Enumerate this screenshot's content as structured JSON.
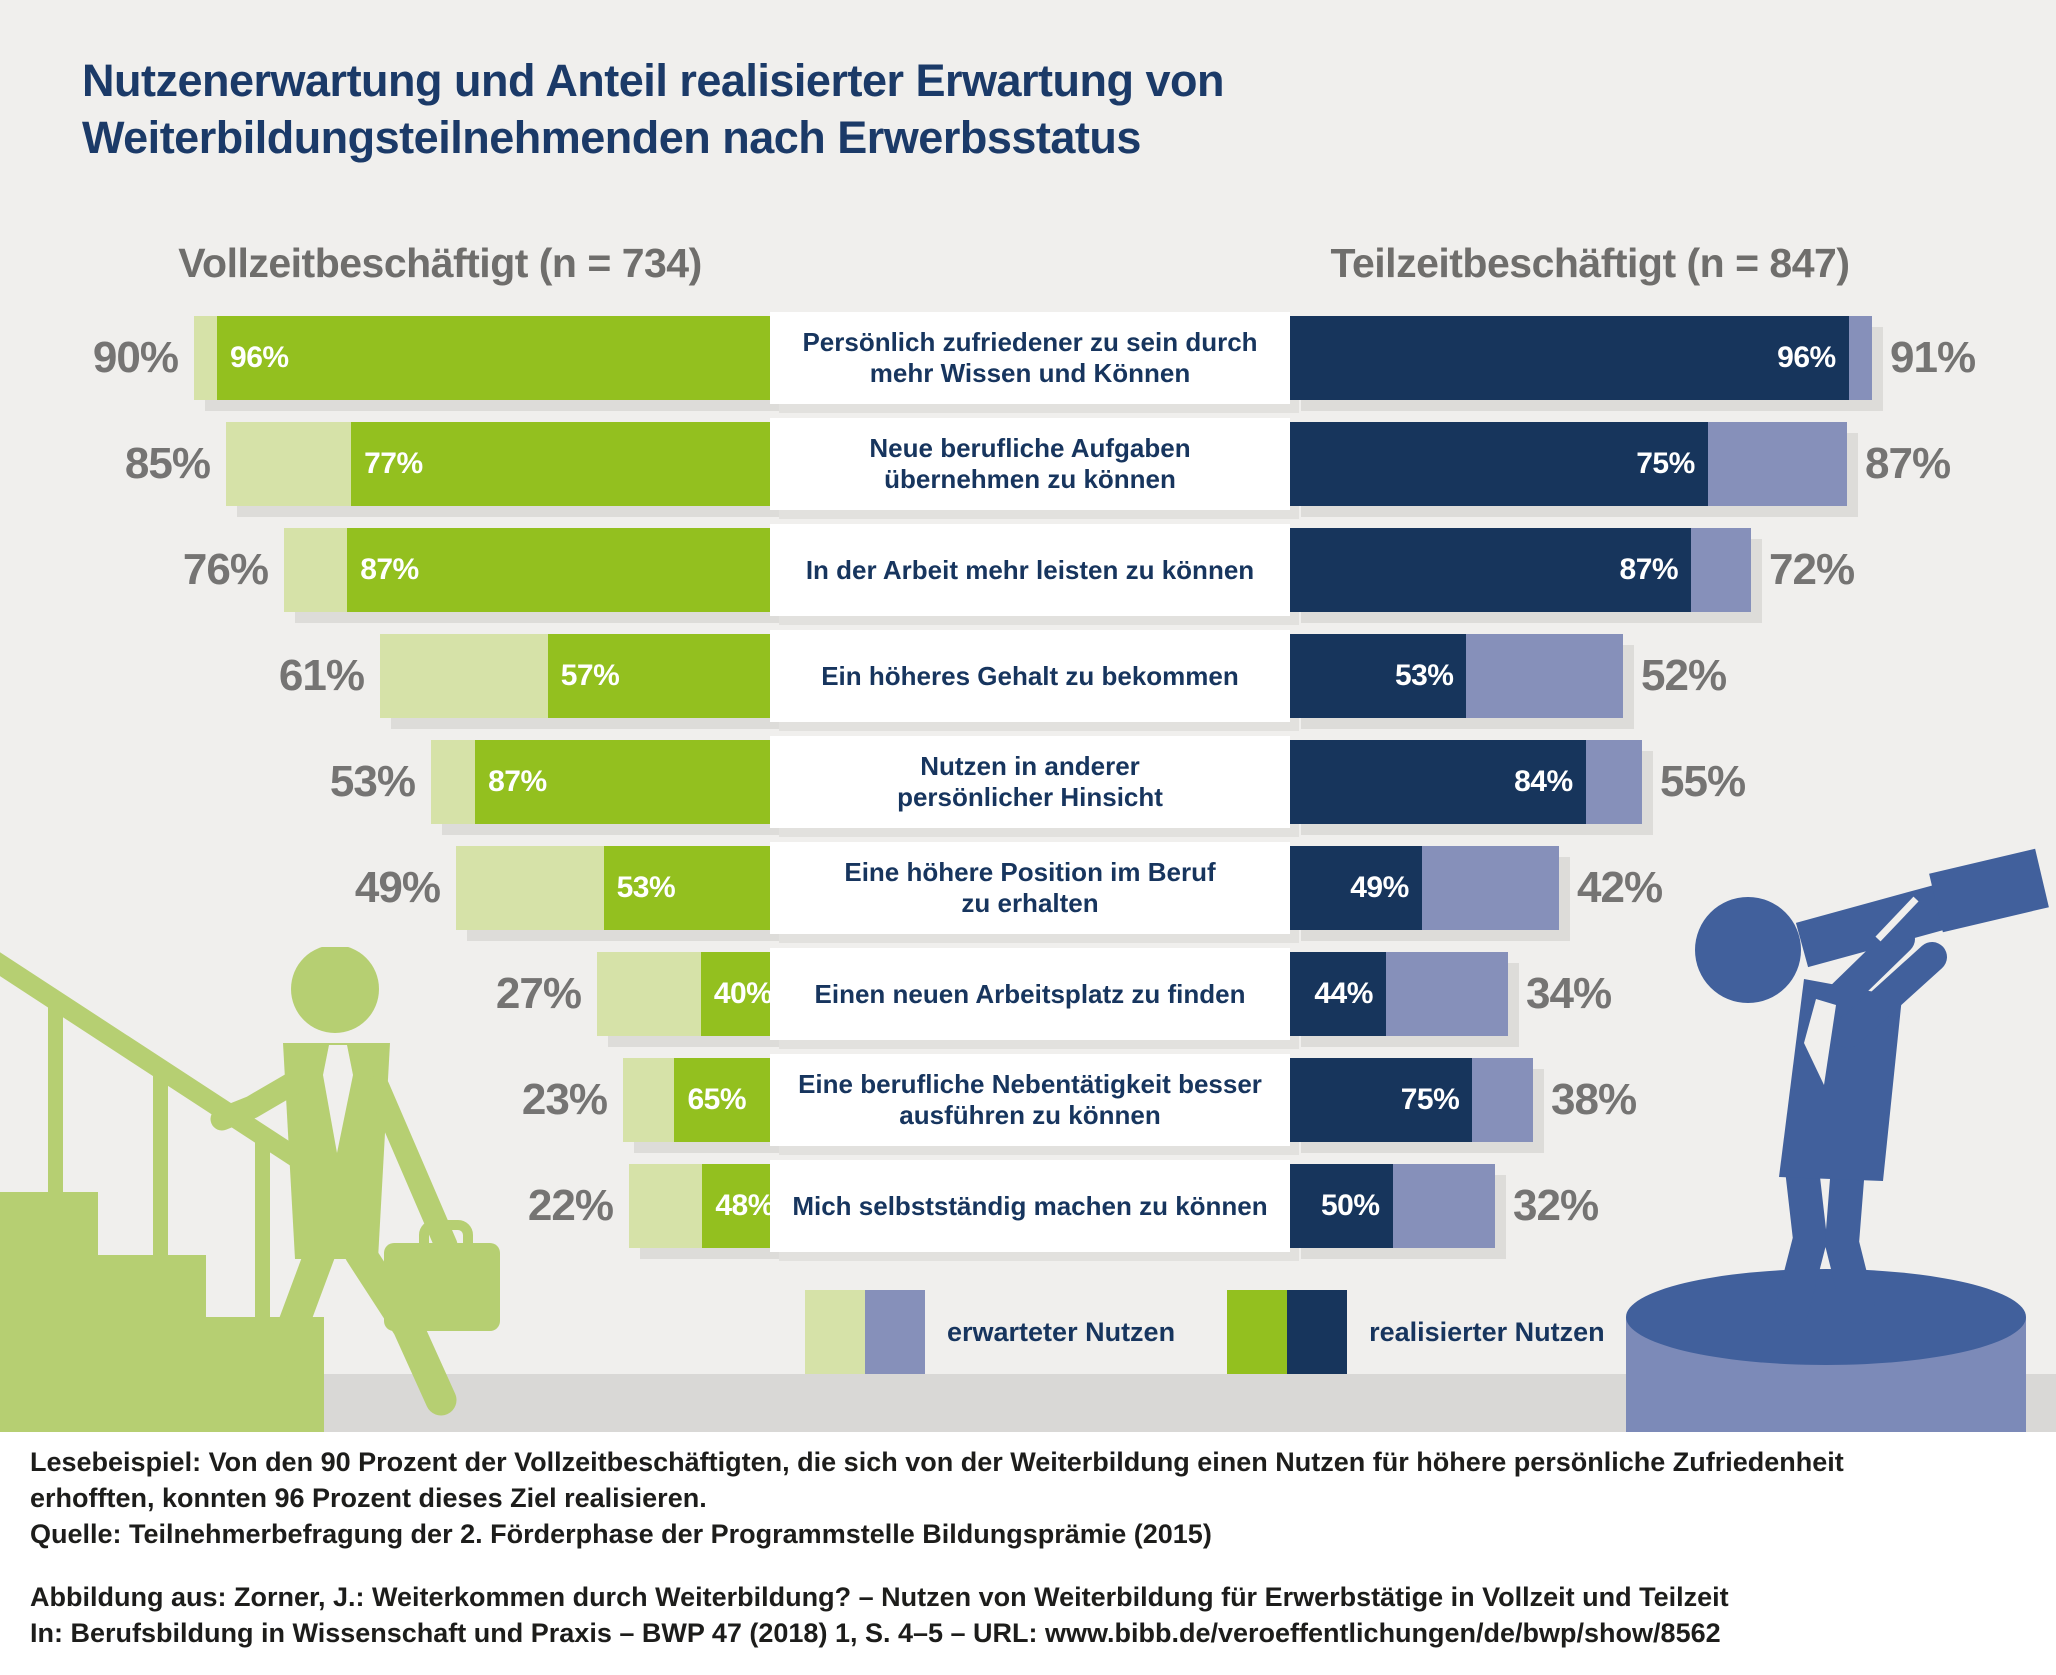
{
  "title": {
    "line1": "Nutzenerwartung und Anteil realisierter Erwartung von",
    "line2": "Weiterbildungsteilnehmenden nach Erwerbsstatus"
  },
  "chart_data": {
    "type": "bar",
    "title": "Nutzenerwartung und Anteil realisierter Erwartung von Weiterbildungsteilnehmenden nach Erwerbsstatus",
    "unit": "percent",
    "axis_note": "Bar length = erwarteter Nutzen (%), dark inner segment = realisierter Nutzen (% of expecters)",
    "left_group": {
      "label": "Vollzeitbeschäftigt (n = 734)",
      "n": 734,
      "expected_color": "#d6e2a8",
      "realized_color": "#93c01f"
    },
    "right_group": {
      "label": "Teilzeitbeschäftigt (n = 847)",
      "n": 847,
      "expected_color": "#8690ba",
      "realized_color": "#17355c"
    },
    "rows": [
      {
        "label_lines": [
          "Persönlich zufriedener zu sein durch",
          "mehr Wissen und Können"
        ],
        "left": {
          "expected": 90,
          "realized": 96
        },
        "right": {
          "expected": 91,
          "realized": 96
        }
      },
      {
        "label_lines": [
          "Neue berufliche Aufgaben",
          "übernehmen zu können"
        ],
        "left": {
          "expected": 85,
          "realized": 77
        },
        "right": {
          "expected": 87,
          "realized": 75
        }
      },
      {
        "label_lines": [
          "In der Arbeit mehr leisten zu können"
        ],
        "left": {
          "expected": 76,
          "realized": 87
        },
        "right": {
          "expected": 72,
          "realized": 87
        }
      },
      {
        "label_lines": [
          "Ein höheres Gehalt zu bekommen"
        ],
        "left": {
          "expected": 61,
          "realized": 57
        },
        "right": {
          "expected": 52,
          "realized": 53
        }
      },
      {
        "label_lines": [
          "Nutzen in anderer",
          "persönlicher Hinsicht"
        ],
        "left": {
          "expected": 53,
          "realized": 87
        },
        "right": {
          "expected": 55,
          "realized": 84
        }
      },
      {
        "label_lines": [
          "Eine höhere Position im Beruf",
          "zu erhalten"
        ],
        "left": {
          "expected": 49,
          "realized": 53
        },
        "right": {
          "expected": 42,
          "realized": 49
        }
      },
      {
        "label_lines": [
          "Einen neuen Arbeitsplatz zu finden"
        ],
        "left": {
          "expected": 27,
          "realized": 40
        },
        "right": {
          "expected": 34,
          "realized": 44
        }
      },
      {
        "label_lines": [
          "Eine berufliche Nebentätigkeit besser",
          "ausführen zu können"
        ],
        "left": {
          "expected": 23,
          "realized": 65
        },
        "right": {
          "expected": 38,
          "realized": 75
        }
      },
      {
        "label_lines": [
          "Mich selbstständig machen zu können"
        ],
        "left": {
          "expected": 22,
          "realized": 48
        },
        "right": {
          "expected": 32,
          "realized": 50
        }
      }
    ],
    "legend": [
      {
        "label": "erwarteter Nutzen",
        "colors": [
          "#d6e2a8",
          "#8690ba"
        ]
      },
      {
        "label": "realisierter Nutzen",
        "colors": [
          "#93c01f",
          "#17355c"
        ]
      }
    ],
    "legend_position": "bottom-center"
  },
  "footer": {
    "lesebeispiel_line1": "Lesebeispiel: Von den 90 Prozent der Vollzeitbeschäftigten, die sich von der Weiterbildung einen Nutzen für höhere persönliche Zufriedenheit",
    "lesebeispiel_line2": "erhofften, konnten 96 Prozent dieses Ziel realisieren.",
    "quelle": "Quelle: Teilnehmerbefragung der 2. Förderphase der Programmstelle Bildungsprämie (2015)",
    "abbildung": "Abbildung aus: Zorner, J.: Weiterkommen durch Weiterbildung? – Nutzen von Weiterbildung für Erwerbstätige in Vollzeit und Teilzeit",
    "in_line": "In: Berufsbildung in Wissenschaft und Praxis – BWP 47 (2018) 1, S. 4–5 – URL: www.bibb.de/veroeffentlichungen/de/bwp/show/8562"
  },
  "colors": {
    "background": "#f0efed",
    "floor": "#d9d8d6",
    "title_text": "#1b3a68",
    "category_text": "#17355e",
    "outer_pct_text": "#757473",
    "climber_green": "#b6cf72",
    "observer_blue": "#41609c",
    "pedestal_blue": "#7c8ab8"
  }
}
